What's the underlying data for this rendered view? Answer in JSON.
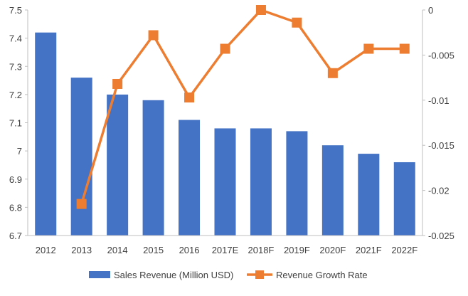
{
  "chart_data": {
    "type": "bar+line",
    "title": "",
    "categories": [
      "2012",
      "2013",
      "2014",
      "2015",
      "2016",
      "2017E",
      "2018F",
      "2019F",
      "2020F",
      "2021F",
      "2022F"
    ],
    "series": [
      {
        "name": "Sales Revenue (Million USD)",
        "type": "bar",
        "axis": "left",
        "color": "#4472C4",
        "values": [
          7.42,
          7.26,
          7.2,
          7.18,
          7.11,
          7.08,
          7.08,
          7.07,
          7.02,
          6.99,
          6.96
        ]
      },
      {
        "name": "Revenue Growth Rate",
        "type": "line",
        "axis": "right",
        "color": "#ED7D31",
        "values": [
          null,
          -0.0215,
          -0.0082,
          -0.0028,
          -0.0097,
          -0.0043,
          0,
          -0.0014,
          -0.007,
          -0.0043,
          -0.0043
        ]
      }
    ],
    "left_axis": {
      "ylim": [
        6.7,
        7.5
      ],
      "ticks": [
        "6.7",
        "6.8",
        "6.9",
        "7",
        "7.1",
        "7.2",
        "7.3",
        "7.4",
        "7.5"
      ]
    },
    "right_axis": {
      "ylim": [
        -0.025,
        0
      ],
      "ticks": [
        "-0.025",
        "-0.02",
        "-0.015",
        "-0.01",
        "-0.005",
        "0"
      ]
    },
    "grid": false,
    "legend": "bottom"
  }
}
